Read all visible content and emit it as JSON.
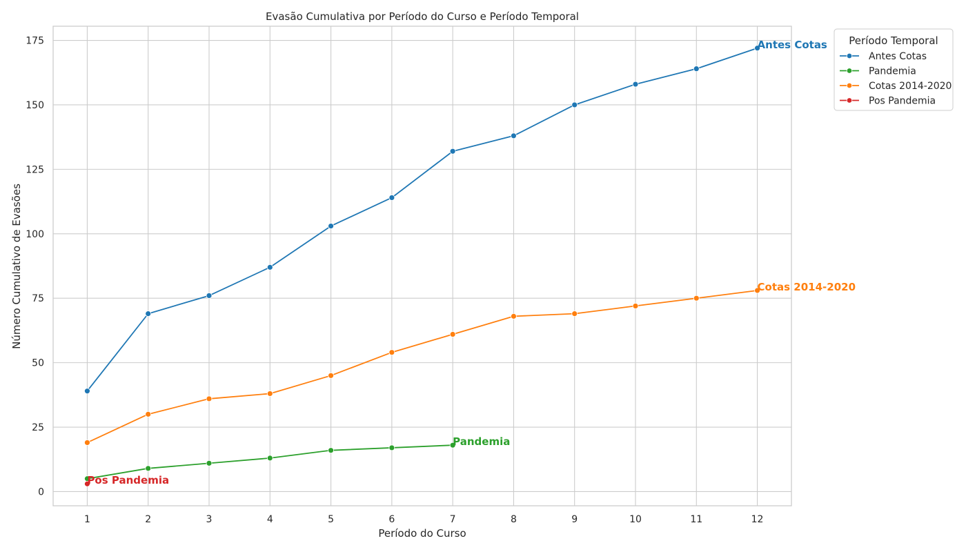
{
  "chart_data": {
    "type": "line",
    "title": "Evasão Cumulativa por Período do Curso e Período Temporal",
    "xlabel": "Período do Curso",
    "ylabel": "Número Cumulativo de Evasões",
    "x_ticks": [
      1,
      2,
      3,
      4,
      5,
      6,
      7,
      8,
      9,
      10,
      11,
      12
    ],
    "y_ticks": [
      0,
      25,
      50,
      75,
      100,
      125,
      150,
      175
    ],
    "xlim": [
      0.44,
      12.56
    ],
    "ylim": [
      -5.5,
      180.5
    ],
    "grid": true,
    "legend": {
      "title": "Período Temporal",
      "placement": "outside-top-right"
    },
    "series": [
      {
        "name": "Antes Cotas",
        "color": "#1f77b4",
        "x": [
          1,
          2,
          3,
          4,
          5,
          6,
          7,
          8,
          9,
          10,
          11,
          12
        ],
        "values": [
          39,
          69,
          76,
          87,
          103,
          114,
          132,
          138,
          150,
          158,
          164,
          172
        ],
        "end_label": "Antes Cotas"
      },
      {
        "name": "Pandemia",
        "color": "#2ca02c",
        "x": [
          1,
          2,
          3,
          4,
          5,
          6,
          7
        ],
        "values": [
          5,
          9,
          11,
          13,
          16,
          17,
          18
        ],
        "end_label": "Pandemia"
      },
      {
        "name": "Cotas 2014-2020",
        "color": "#ff7f0e",
        "x": [
          1,
          2,
          3,
          4,
          5,
          6,
          7,
          8,
          9,
          10,
          11,
          12
        ],
        "values": [
          19,
          30,
          36,
          38,
          45,
          54,
          61,
          68,
          69,
          72,
          75,
          78
        ],
        "end_label": "Cotas 2014-2020"
      },
      {
        "name": "Pos Pandemia",
        "color": "#d62728",
        "x": [
          1
        ],
        "values": [
          3
        ],
        "end_label": "Pos Pandemia"
      }
    ]
  }
}
